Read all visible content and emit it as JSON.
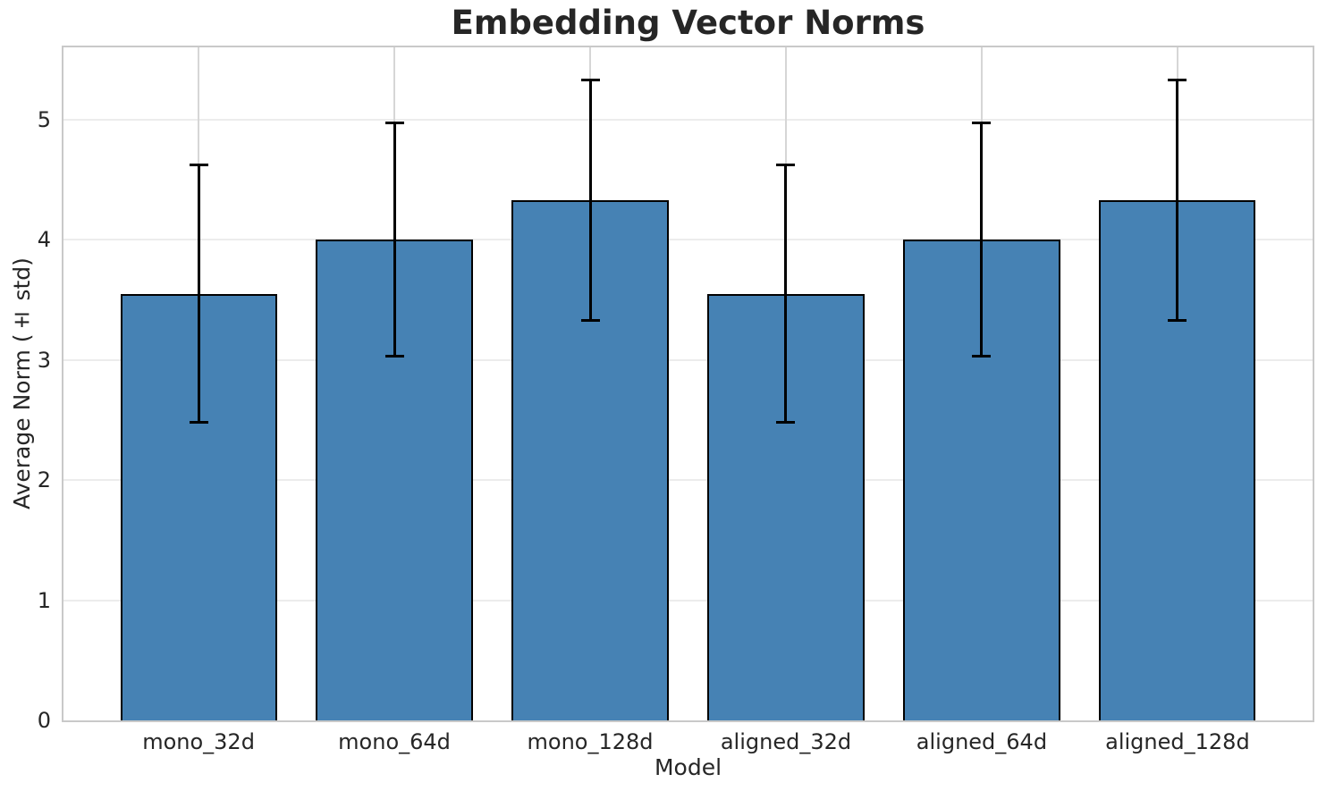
{
  "chart_data": {
    "type": "bar",
    "title": "Embedding Vector Norms",
    "xlabel": "Model",
    "ylabel": "Average Norm (± std)",
    "categories": [
      "mono_32d",
      "mono_64d",
      "mono_128d",
      "aligned_32d",
      "aligned_64d",
      "aligned_128d"
    ],
    "series": [
      {
        "name": "Average Norm",
        "values": [
          3.55,
          4.0,
          4.33,
          3.55,
          4.0,
          4.33
        ],
        "errors": [
          1.07,
          0.97,
          1.0,
          1.07,
          0.97,
          1.0
        ]
      }
    ],
    "yticks": [
      0,
      1,
      2,
      3,
      4,
      5
    ],
    "ylim": [
      0,
      5.6
    ],
    "grid": true,
    "legend_position": "none",
    "colors": {
      "bar_fill": "#4682B4",
      "bar_edge": "#000000",
      "error_bar": "#000000",
      "grid_horizontal": "#ececec",
      "grid_vertical": "#d6d6d6",
      "spine": "#c9c9c9",
      "text": "#262626"
    }
  }
}
